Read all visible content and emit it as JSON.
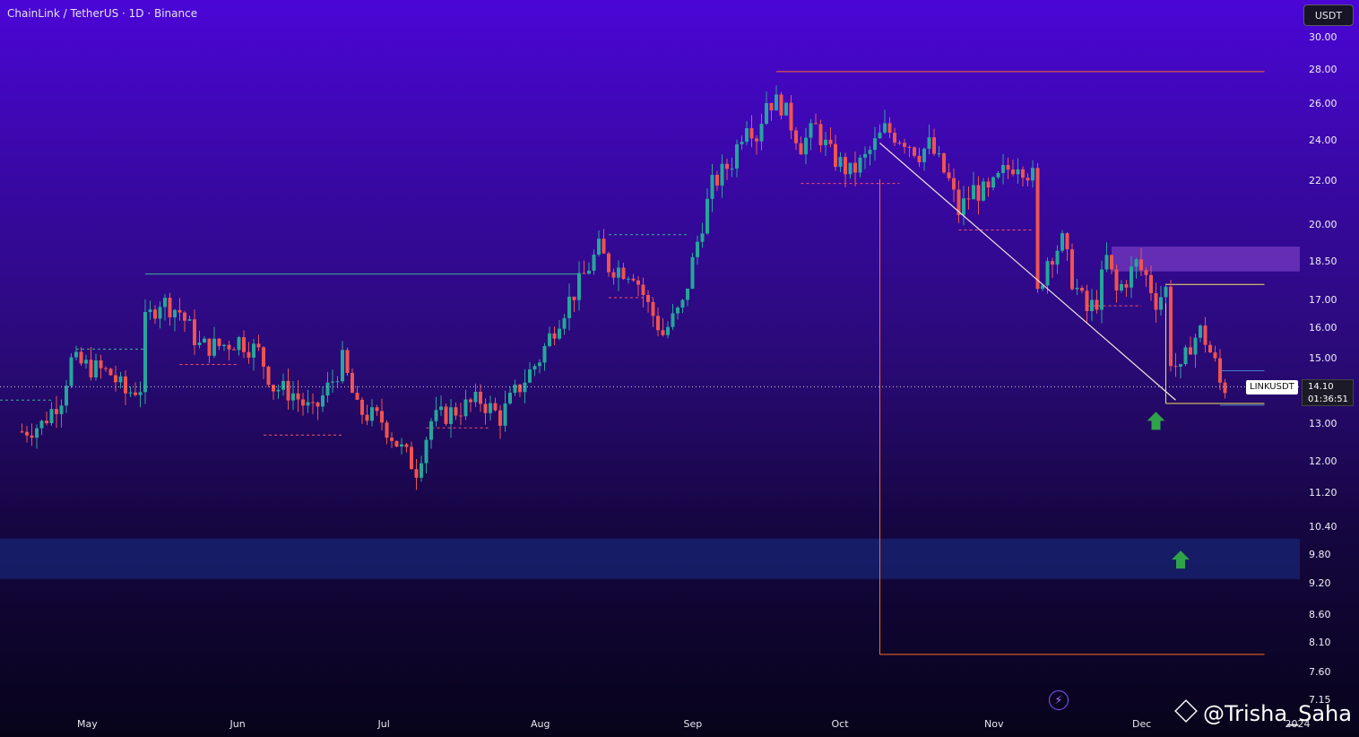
{
  "header": {
    "title": "ChainLink / TetherUS · 1D · Binance"
  },
  "currency_button": "USDT",
  "price_tag": {
    "ticker": "LINKUSDT",
    "price": "14.10",
    "countdown": "01:36:51"
  },
  "watermark": "@Trisha_Saha",
  "colors": {
    "bull": "#26a69a",
    "bear": "#ef5350",
    "trendline": "#f2e6e0",
    "orange_box": "#ff6a2a",
    "resistance_zone": "#a25ce0",
    "support_zone": "#1a2f88",
    "level_yellow": "#f6e55c",
    "level_blue": "#4a7fd0",
    "arrow": "#2fa34a"
  },
  "chart_data": {
    "type": "candlestick",
    "title": "ChainLink / TetherUS · 1D · Binance",
    "y_scale": "log",
    "y_ticks": [
      "30.00",
      "28.00",
      "26.00",
      "24.00",
      "22.00",
      "20.00",
      "18.50",
      "17.00",
      "16.00",
      "15.00",
      "13.00",
      "12.00",
      "11.20",
      "10.40",
      "9.80",
      "9.20",
      "8.60",
      "8.10",
      "7.60",
      "7.15"
    ],
    "x_ticks": [
      "May",
      "Jun",
      "Jul",
      "Aug",
      "Sep",
      "Oct",
      "Nov",
      "Dec",
      "2024"
    ],
    "x_range": [
      "2023-04-18",
      "2024-01-01"
    ],
    "last_price": 14.1,
    "annotations": {
      "ath_level": 27.9,
      "orange_measure": {
        "start": "2023-10-09",
        "end": "2023-12-26",
        "top": 27.9,
        "bottom": 7.9
      },
      "resistance_zone": [
        18.1,
        19.1
      ],
      "support_zone": [
        9.3,
        10.15
      ],
      "descending_trendline": {
        "from": [
          "2023-10-09",
          23.9
        ],
        "to": [
          "2023-12-08",
          13.7
        ]
      },
      "yellow_levels": [
        17.6,
        13.6
      ],
      "blue_level": 14.6,
      "green_arrows": [
        [
          "2023-12-04",
          13.1
        ],
        [
          "2023-12-09",
          9.7
        ]
      ]
    },
    "candles": []
  }
}
